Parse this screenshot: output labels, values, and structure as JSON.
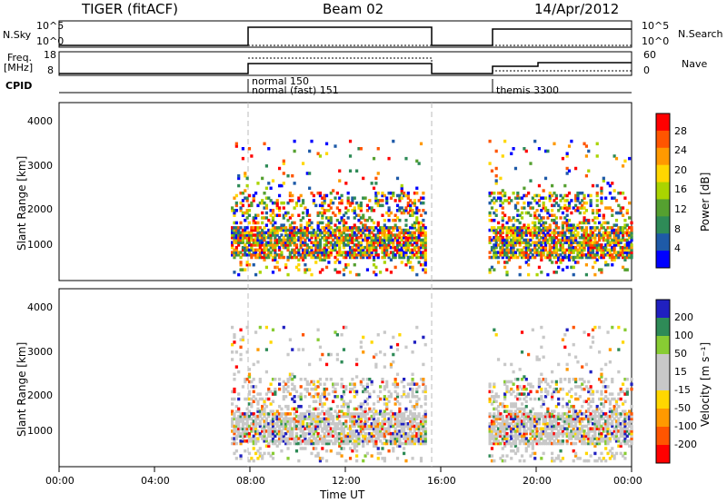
{
  "header": {
    "radar_title": "TIGER (fitACF)",
    "beam": "Beam 02",
    "date": "14/Apr/2012"
  },
  "nsky_panel": {
    "left_label": "N.Sky",
    "right_label": "N.Search",
    "y_ticks": [
      "10^5",
      "10^0"
    ]
  },
  "freq_panel": {
    "left_label_line1": "Freq.",
    "left_label_line2": "[MHz]",
    "right_label": "Nave",
    "left_ticks": [
      "18",
      "8"
    ],
    "right_ticks": [
      "60",
      "0"
    ]
  },
  "cpid": {
    "label": "CPID",
    "modes": [
      "normal 150",
      "normal (fast) 151",
      "themis 3300"
    ]
  },
  "range_axis": {
    "label": "Slant Range [km]",
    "ticks": [
      "4000",
      "3000",
      "2000",
      "1000"
    ]
  },
  "time_axis": {
    "label": "Time UT",
    "ticks": [
      "00:00",
      "04:00",
      "08:00",
      "12:00",
      "16:00",
      "20:00",
      "00:00"
    ]
  },
  "power_colorbar": {
    "label": "Power [dB]",
    "ticks": [
      "28",
      "24",
      "20",
      "16",
      "12",
      "8",
      "4"
    ],
    "colors": [
      "#ff0000",
      "#ff5500",
      "#ff9900",
      "#ffd700",
      "#aad400",
      "#55a030",
      "#2e8b57",
      "#1e5aa8",
      "#0000ff"
    ]
  },
  "velocity_colorbar": {
    "label": "Velocity [m s⁻¹]",
    "ticks": [
      "200",
      "100",
      "50",
      "15",
      "-15",
      "-50",
      "-100",
      "-200"
    ],
    "colors": [
      "#2020c0",
      "#2e8b57",
      "#88cc33",
      "#c8c8c8",
      "#c8c8c8",
      "#ffd700",
      "#ff9900",
      "#ff5500",
      "#ff0000"
    ]
  },
  "chart_data": {
    "type": "heatmap",
    "time_range_hours": [
      0,
      24
    ],
    "range_ylim_km": [
      180,
      4500
    ],
    "operating_intervals_ut_hours": [
      [
        7.2,
        15.3
      ],
      [
        18.0,
        24.0
      ]
    ],
    "power_echo_bands_km": [
      [
        800,
        1400
      ],
      [
        1500,
        2200
      ]
    ],
    "velocity_echo_bands_km": [
      [
        800,
        1400
      ],
      [
        1500,
        2200
      ]
    ]
  }
}
